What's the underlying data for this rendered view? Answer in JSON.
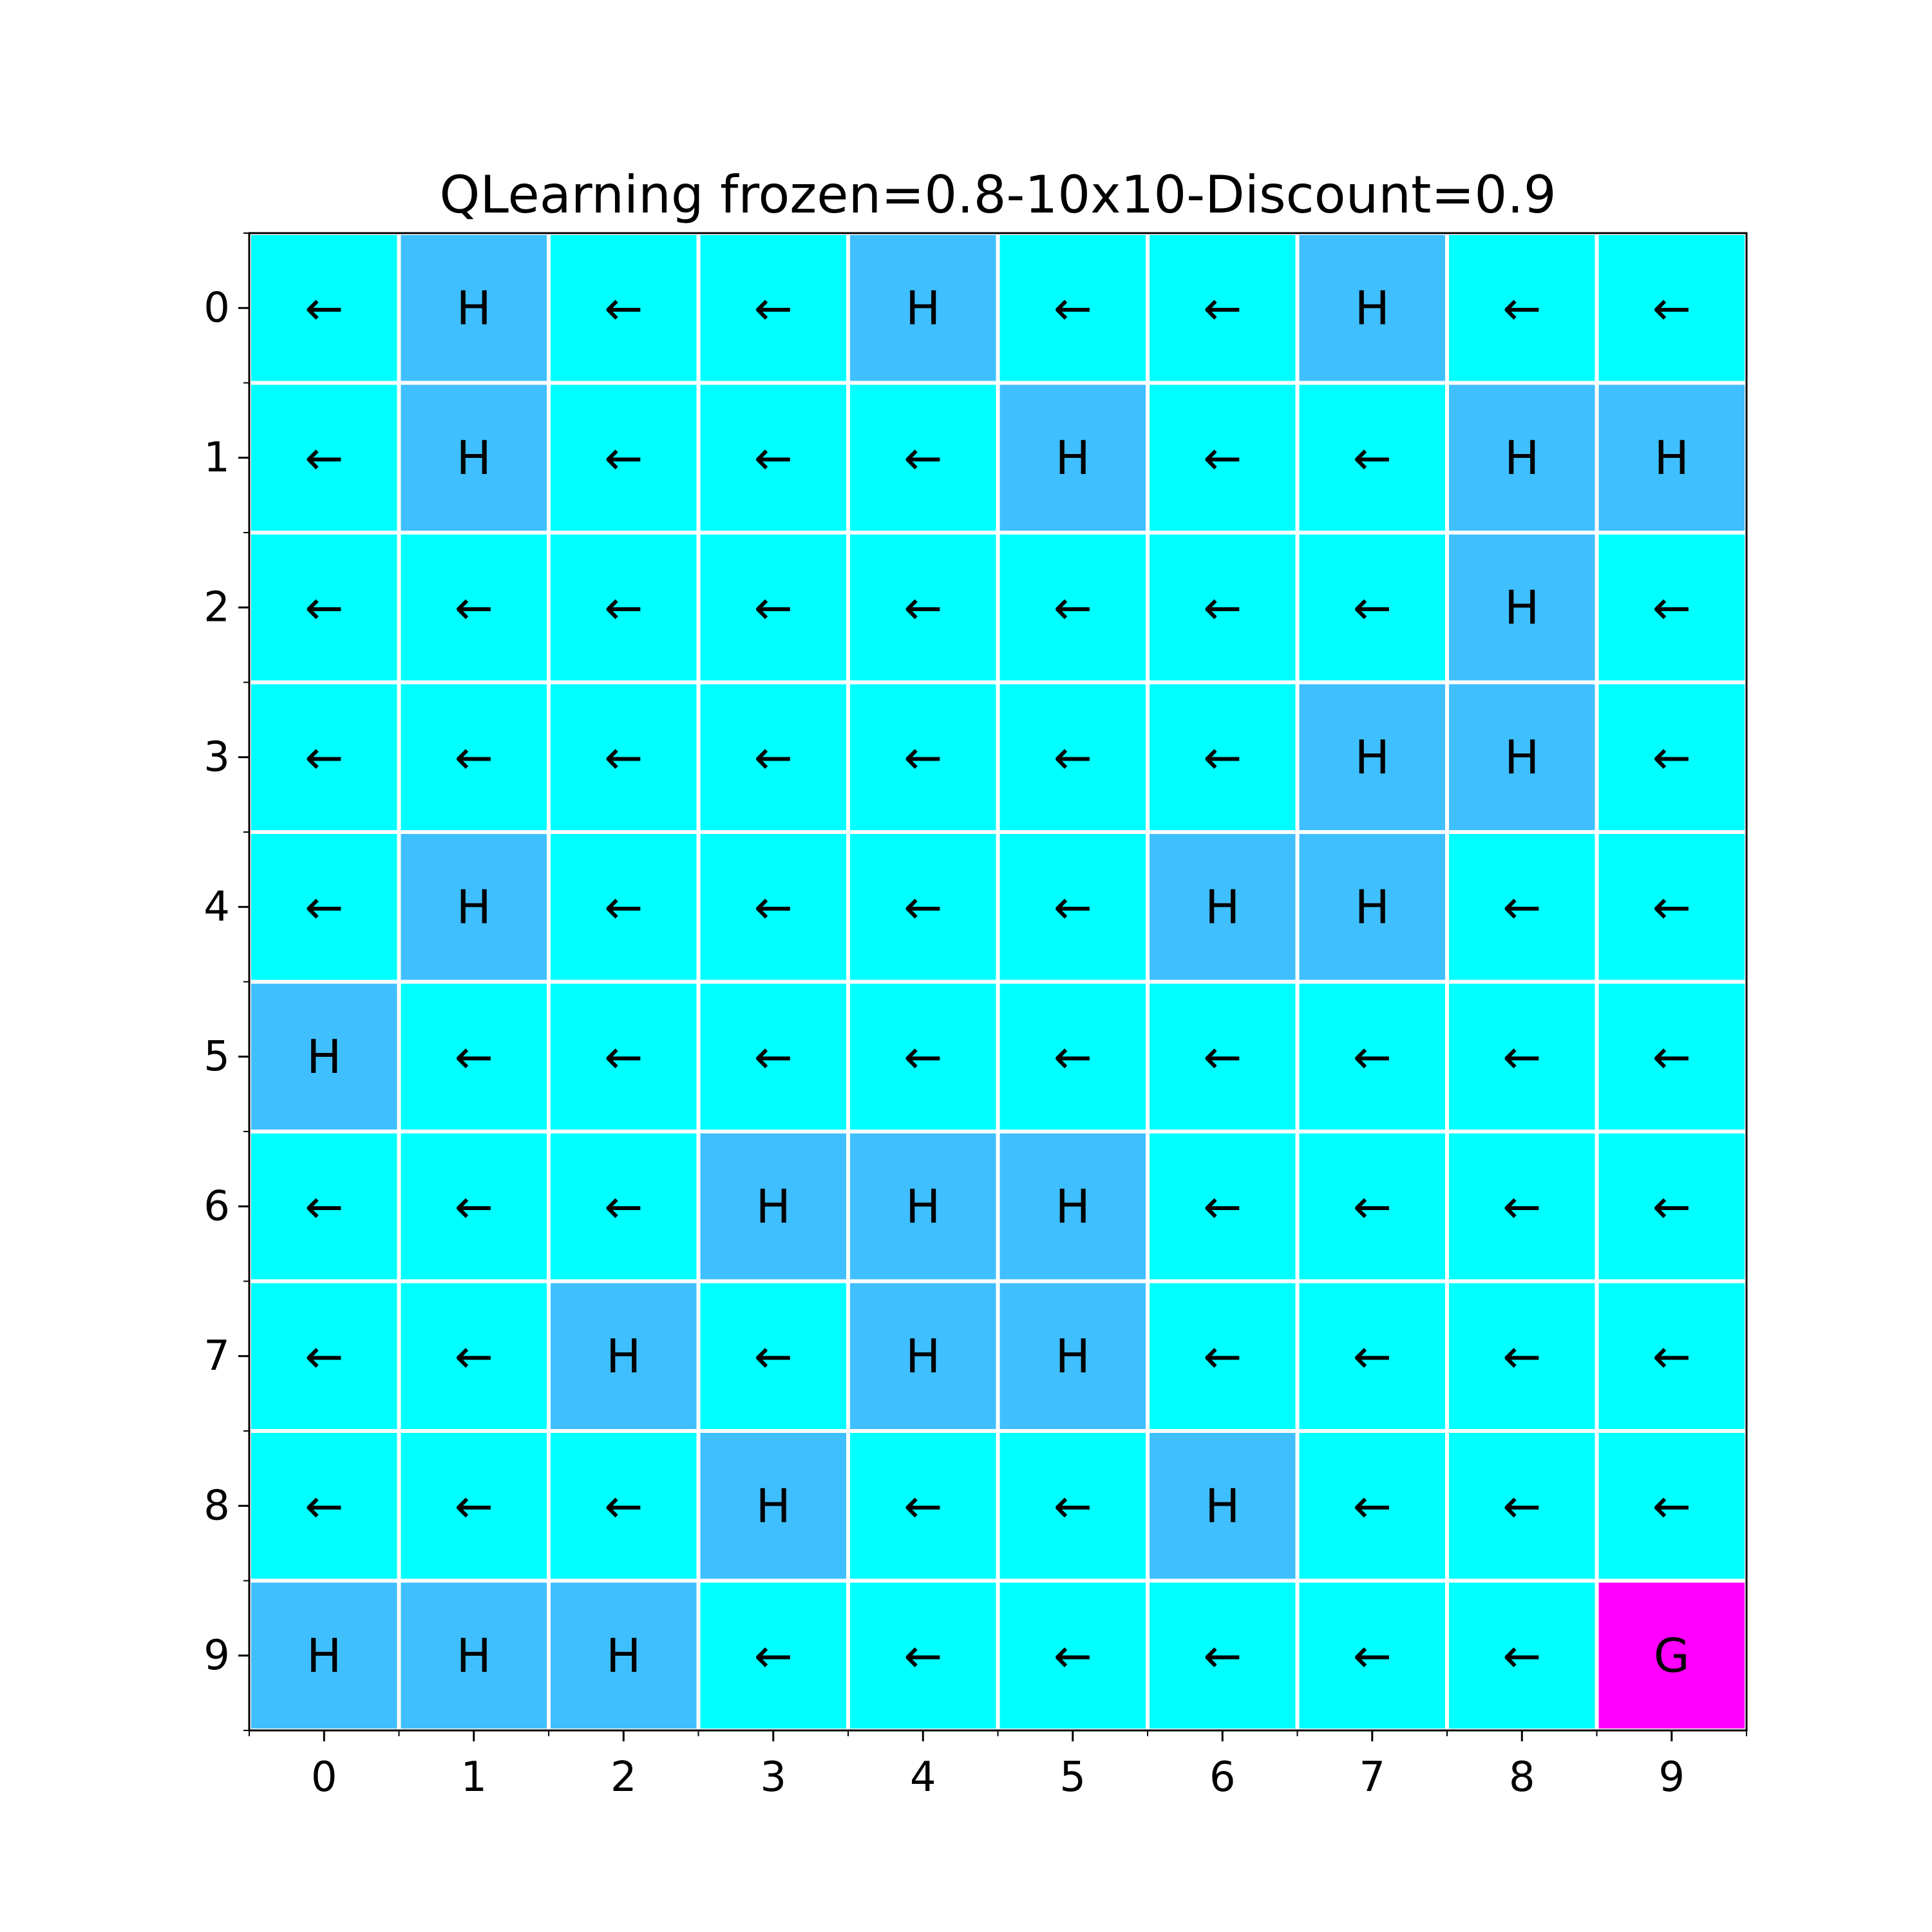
{
  "chart_data": {
    "type": "heatmap",
    "title": "QLearning frozen=0.8-10x10-Discount=0.9",
    "xlabel": "",
    "ylabel": "",
    "x_ticks": [
      "0",
      "1",
      "2",
      "3",
      "4",
      "5",
      "6",
      "7",
      "8",
      "9"
    ],
    "y_ticks": [
      "0",
      "1",
      "2",
      "3",
      "4",
      "5",
      "6",
      "7",
      "8",
      "9"
    ],
    "colors": {
      "frozen": "#00ffff",
      "hole": "#40bfff",
      "goal": "#ff00ff",
      "gridline": "#ffffff",
      "text": "#000000"
    },
    "grid": [
      [
        "←",
        "H",
        "←",
        "←",
        "H",
        "←",
        "←",
        "H",
        "←",
        "←"
      ],
      [
        "←",
        "H",
        "←",
        "←",
        "←",
        "H",
        "←",
        "←",
        "H",
        "H"
      ],
      [
        "←",
        "←",
        "←",
        "←",
        "←",
        "←",
        "←",
        "←",
        "H",
        "←"
      ],
      [
        "←",
        "←",
        "←",
        "←",
        "←",
        "←",
        "←",
        "H",
        "H",
        "←"
      ],
      [
        "←",
        "H",
        "←",
        "←",
        "←",
        "←",
        "H",
        "H",
        "←",
        "←"
      ],
      [
        "H",
        "←",
        "←",
        "←",
        "←",
        "←",
        "←",
        "←",
        "←",
        "←"
      ],
      [
        "←",
        "←",
        "←",
        "H",
        "H",
        "H",
        "←",
        "←",
        "←",
        "←"
      ],
      [
        "←",
        "←",
        "H",
        "←",
        "H",
        "H",
        "←",
        "←",
        "←",
        "←"
      ],
      [
        "←",
        "←",
        "←",
        "H",
        "←",
        "←",
        "H",
        "←",
        "←",
        "←"
      ],
      [
        "H",
        "H",
        "H",
        "←",
        "←",
        "←",
        "←",
        "←",
        "←",
        "G"
      ]
    ]
  }
}
